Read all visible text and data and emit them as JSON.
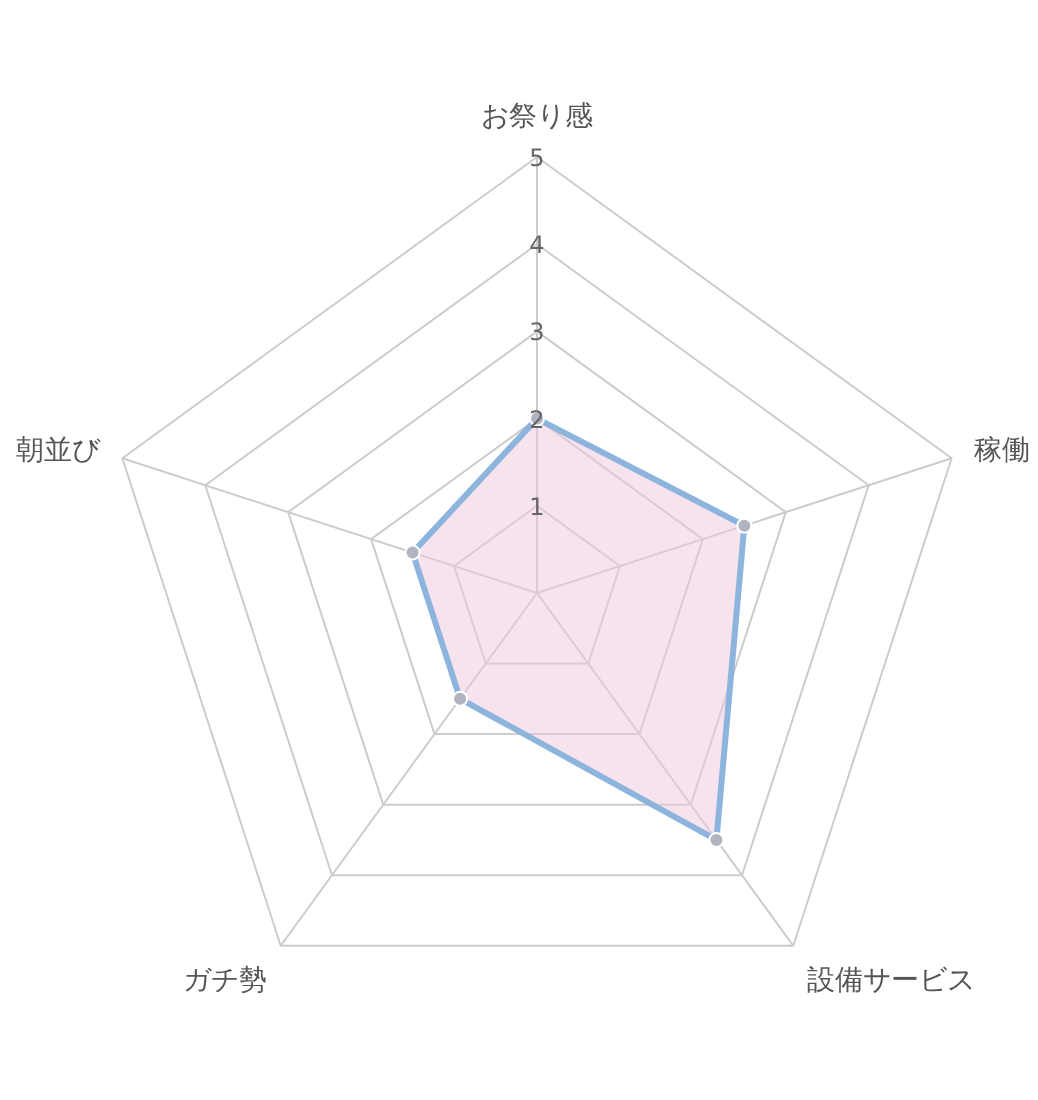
{
  "chart_data": {
    "type": "radar",
    "categories": [
      "お祭り感",
      "稼働",
      "設備サービス",
      "ガチ勢",
      "朝並び"
    ],
    "series": [
      {
        "color": "#8db4dd",
        "values": [
          2,
          2.5,
          3.5,
          1.5,
          1.5
        ]
      }
    ],
    "ylim": [
      0,
      5
    ],
    "yticks": [
      1,
      2,
      3,
      4,
      5
    ],
    "marker": "circle",
    "grid": true
  }
}
